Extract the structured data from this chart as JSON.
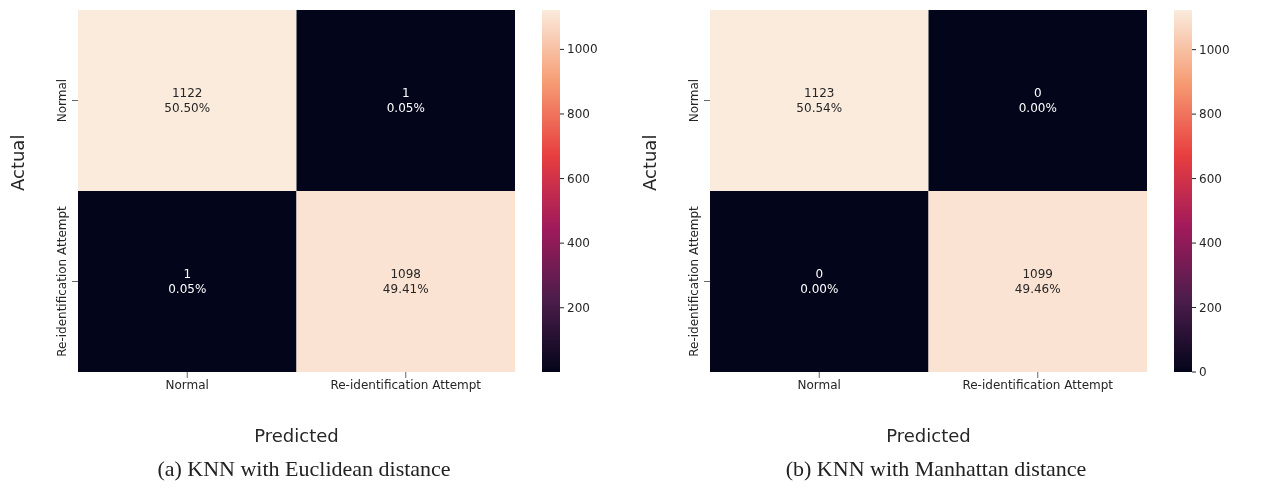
{
  "chart_data": [
    {
      "type": "heatmap",
      "categories": [
        "Normal",
        "Re-identification Attempt"
      ],
      "y_categories": [
        "Normal",
        "Re-identification Attempt"
      ],
      "xlabel": "Predicted",
      "ylabel": "Actual",
      "cells": [
        [
          1122,
          1
        ],
        [
          1,
          1098
        ]
      ],
      "cell_labels": [
        [
          "1122\n50.50%",
          "1\n0.05%"
        ],
        [
          "1\n0.05%",
          "1098\n49.41%"
        ]
      ],
      "clim": [
        1,
        1122
      ],
      "cticks": [
        200,
        400,
        600,
        800,
        1000
      ],
      "annotations": [
        "(a) KNN with Euclidean distance"
      ]
    },
    {
      "type": "heatmap",
      "categories": [
        "Normal",
        "Re-identification Attempt"
      ],
      "y_categories": [
        "Normal",
        "Re-identification Attempt"
      ],
      "xlabel": "Predicted",
      "ylabel": "Actual",
      "cells": [
        [
          1123,
          0
        ],
        [
          0,
          1099
        ]
      ],
      "cell_labels": [
        [
          "1123\n50.54%",
          "0\n0.00%"
        ],
        [
          "0\n0.00%",
          "1099\n49.46%"
        ]
      ],
      "clim": [
        0,
        1123
      ],
      "cticks": [
        0,
        200,
        400,
        600,
        800,
        1000
      ],
      "annotations": [
        "(b) KNN with Manhattan distance"
      ]
    }
  ]
}
